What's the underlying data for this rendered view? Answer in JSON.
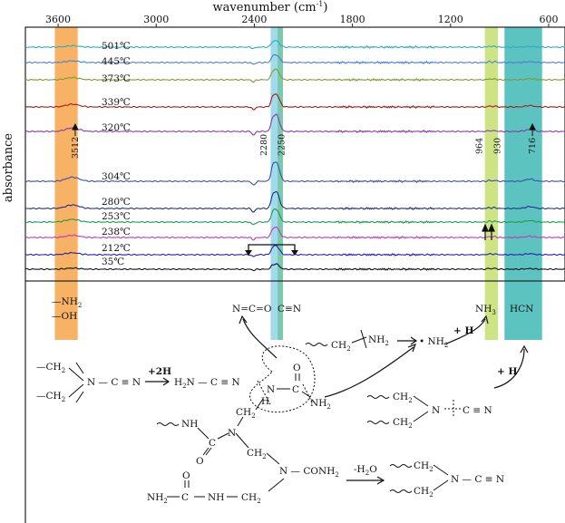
{
  "chart_data": {
    "type": "line",
    "xlabel": "wavenumber (cm",
    "xlabel_sup": "-1",
    "xlabel_close": ")",
    "ylabel": "absorbance",
    "xlim": [
      3800,
      500
    ],
    "x_ticks": [
      3600,
      3000,
      2400,
      1800,
      1200,
      600
    ],
    "series": [
      {
        "name": "501℃",
        "color": "#2ba9c9",
        "baseline": 0.0
      },
      {
        "name": "445℃",
        "color": "#4a7ec9",
        "baseline": 0.0
      },
      {
        "name": "373℃",
        "color": "#7f9a2e",
        "baseline": 0.0
      },
      {
        "name": "339℃",
        "color": "#a01c1c",
        "baseline": 0.0
      },
      {
        "name": "320℃",
        "color": "#8a3aa8",
        "baseline": 0.0
      },
      {
        "name": "304℃",
        "color": "#3d4fa6",
        "baseline": 0.0
      },
      {
        "name": "280℃",
        "color": "#1f2f8a",
        "baseline": 0.0
      },
      {
        "name": "253℃",
        "color": "#1f9a4a",
        "baseline": 0.0
      },
      {
        "name": "238℃",
        "color": "#c23ab0",
        "baseline": 0.0
      },
      {
        "name": "212℃",
        "color": "#2222aa",
        "baseline": 0.0
      },
      {
        "name": "35℃",
        "color": "#111111",
        "baseline": 0.0
      }
    ],
    "peaks": [
      {
        "x": 3512,
        "label": "3512"
      },
      {
        "x": 2280,
        "label": "2280"
      },
      {
        "x": 2250,
        "label": "2250"
      },
      {
        "x": 964,
        "label": "964"
      },
      {
        "x": 930,
        "label": "930"
      },
      {
        "x": 716,
        "label": "716"
      }
    ],
    "bands": [
      {
        "from": 3620,
        "to": 3480,
        "color": "#f6a54a",
        "label_lines": [
          "—NH",
          "—OH"
        ]
      },
      {
        "from": 2300,
        "to": 2258,
        "color": "#8fd3e8",
        "label_lines": [
          "N=C=O"
        ]
      },
      {
        "from": 2258,
        "to": 2225,
        "color": "#63bfa0",
        "label_lines": [
          "C≡N"
        ]
      },
      {
        "from": 990,
        "to": 910,
        "color": "#c6df6e",
        "label_lines": [
          "NH"
        ]
      },
      {
        "from": 870,
        "to": 640,
        "color": "#3fb8b5",
        "label_lines": [
          "HCN"
        ]
      }
    ]
  },
  "scheme": {
    "r1": {
      "ch2a": "—CH",
      "ch2b": "—CH",
      "n": "N — C ≡ N",
      "plus2h": "+2H",
      "product": "H",
      "product_rest": "N — C ≡ N"
    },
    "r_nh2": {
      "left": "CH",
      "nh2": "NH",
      "radical": "• NH"
    },
    "plus_h_a": "+ H",
    "plus_h_b": "+ H",
    "urea_center": {
      "h": "H",
      "n": "N",
      "c": "C",
      "o": "O",
      "nh2": "NH"
    },
    "polymer": {
      "nh": "NH",
      "c": "C",
      "o": "O",
      "n": "N",
      "ch2": "CH",
      "ch2b": "CH",
      "n2": "N — CONH",
      "nh2_left": "NH",
      "c2": "C",
      "ch2c": "CH",
      "o2": "O"
    },
    "r3": {
      "ch2a": "CH",
      "ch2b": "CH",
      "n": "N",
      "cn": "C ≡ N"
    },
    "r4": {
      "minus_h2o": "-H",
      "minus_h2o_rest": "O",
      "ch2a": "CH",
      "ch2b": "CH",
      "n": "N — C ≡ N"
    },
    "sub2": "2"
  }
}
